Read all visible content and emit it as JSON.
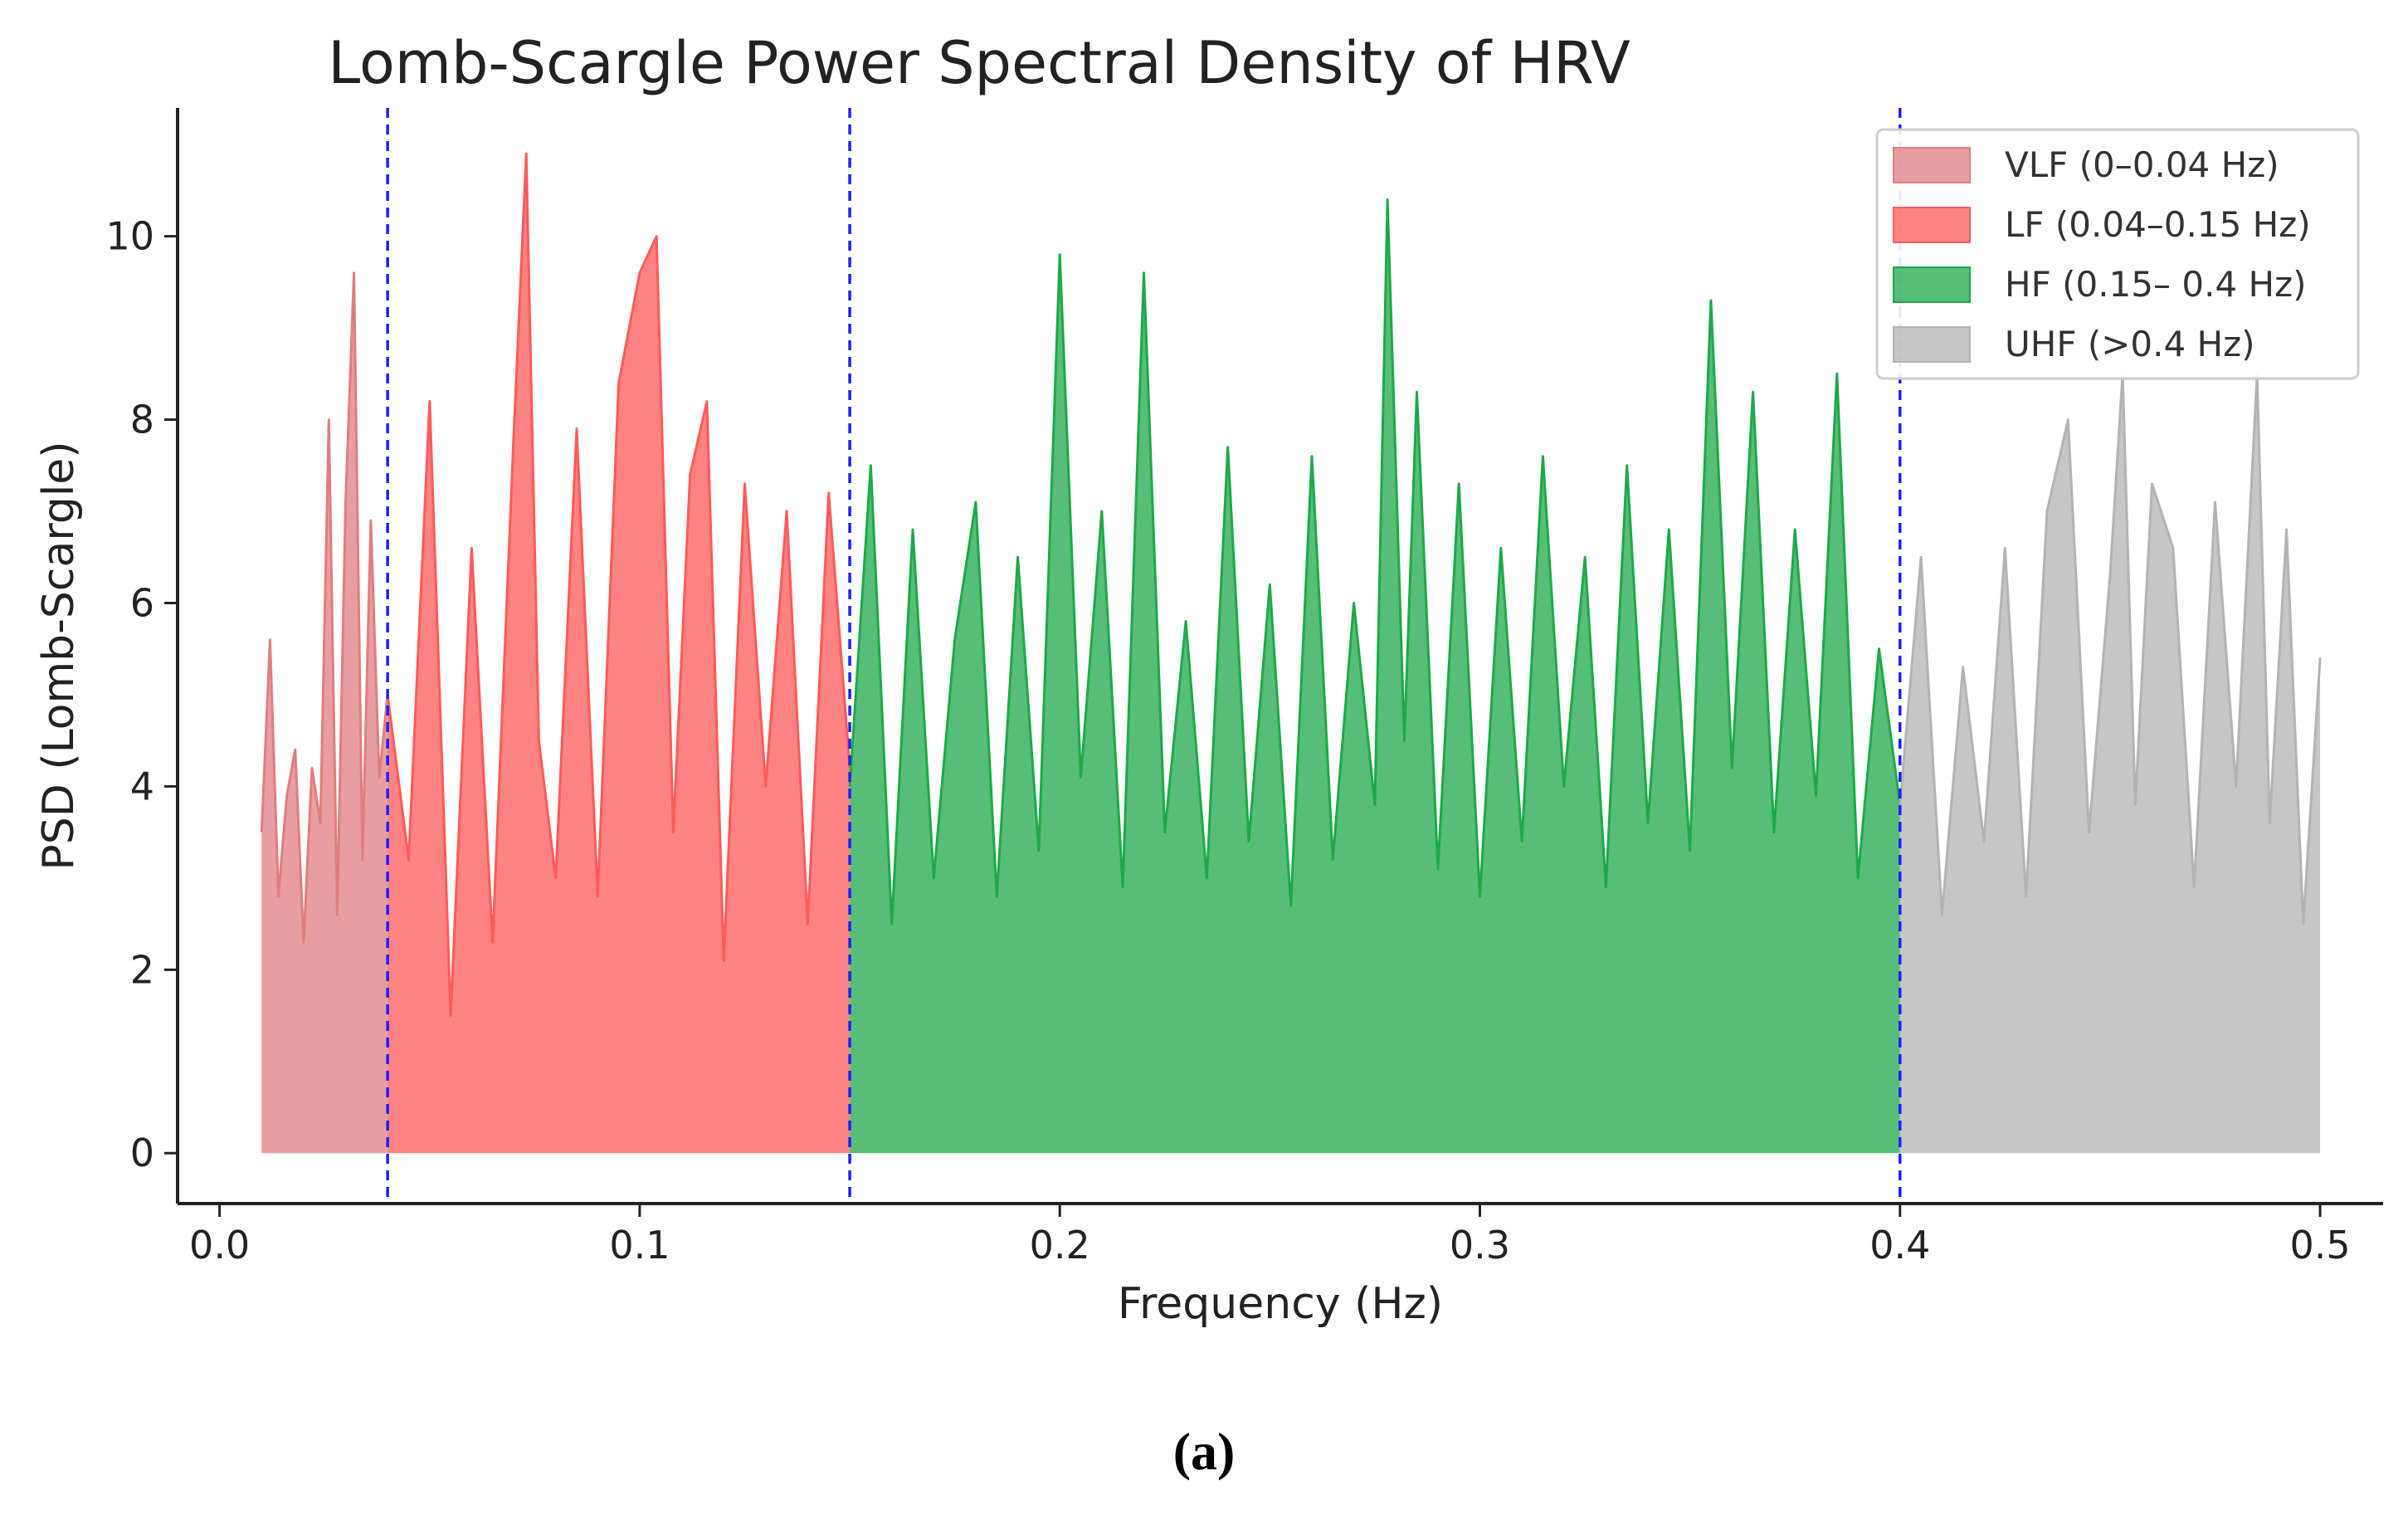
{
  "chart_data": {
    "type": "area",
    "title": "Lomb-Scargle Power Spectral Density of HRV",
    "xlabel": "Frequency (Hz)",
    "ylabel": "PSD (Lomb-Scargle)",
    "xlim": [
      -0.01,
      0.515
    ],
    "ylim": [
      -0.55,
      11.4
    ],
    "xticks": [
      0.0,
      0.1,
      0.2,
      0.3,
      0.4,
      0.5
    ],
    "xtick_labels": [
      "0.0",
      "0.1",
      "0.2",
      "0.3",
      "0.4",
      "0.5"
    ],
    "yticks": [
      0,
      2,
      4,
      6,
      8,
      10
    ],
    "ytick_labels": [
      "0",
      "2",
      "4",
      "6",
      "8",
      "10"
    ],
    "band_boundaries": [
      0.04,
      0.15,
      0.4
    ],
    "boundary_color": "#1f1fff",
    "legend_position": "top-right",
    "series": [
      {
        "name": "VLF (0–0.04 Hz)",
        "range": [
          0.01,
          0.04
        ],
        "color": "#e07d80",
        "x": [
          0.01,
          0.012,
          0.014,
          0.016,
          0.018,
          0.02,
          0.022,
          0.024,
          0.026,
          0.028,
          0.03,
          0.032,
          0.034,
          0.036,
          0.038,
          0.04
        ],
        "values": [
          3.5,
          5.6,
          2.8,
          3.9,
          4.4,
          2.3,
          4.2,
          3.6,
          8.0,
          2.6,
          7.1,
          9.6,
          3.2,
          6.9,
          4.1,
          5.0
        ]
      },
      {
        "name": "LF (0.04–0.15 Hz)",
        "range": [
          0.04,
          0.15
        ],
        "color": "#ff5a5a",
        "x": [
          0.04,
          0.045,
          0.05,
          0.055,
          0.06,
          0.065,
          0.07,
          0.073,
          0.076,
          0.08,
          0.085,
          0.09,
          0.095,
          0.1,
          0.104,
          0.108,
          0.112,
          0.116,
          0.12,
          0.125,
          0.13,
          0.135,
          0.14,
          0.145,
          0.15
        ],
        "values": [
          5.0,
          3.2,
          8.2,
          1.5,
          6.6,
          2.3,
          7.8,
          10.9,
          4.5,
          3.0,
          7.9,
          2.8,
          8.4,
          9.6,
          10.0,
          3.5,
          7.4,
          8.2,
          2.1,
          7.3,
          4.0,
          7.0,
          2.5,
          7.2,
          4.2
        ]
      },
      {
        "name": "HF (0.15– 0.4 Hz)",
        "range": [
          0.15,
          0.4
        ],
        "color": "#1fa84a",
        "x": [
          0.15,
          0.155,
          0.16,
          0.165,
          0.17,
          0.175,
          0.18,
          0.185,
          0.19,
          0.195,
          0.2,
          0.205,
          0.21,
          0.215,
          0.22,
          0.225,
          0.23,
          0.235,
          0.24,
          0.245,
          0.25,
          0.255,
          0.26,
          0.265,
          0.27,
          0.275,
          0.278,
          0.282,
          0.285,
          0.29,
          0.295,
          0.3,
          0.305,
          0.31,
          0.315,
          0.32,
          0.325,
          0.33,
          0.335,
          0.34,
          0.345,
          0.35,
          0.355,
          0.36,
          0.365,
          0.37,
          0.375,
          0.38,
          0.385,
          0.39,
          0.395,
          0.4
        ],
        "values": [
          4.0,
          7.5,
          2.5,
          6.8,
          3.0,
          5.6,
          7.1,
          2.8,
          6.5,
          3.3,
          9.8,
          4.1,
          7.0,
          2.9,
          9.6,
          3.5,
          5.8,
          3.0,
          7.7,
          3.4,
          6.2,
          2.7,
          7.6,
          3.2,
          6.0,
          3.8,
          10.4,
          4.5,
          8.3,
          3.1,
          7.3,
          2.8,
          6.6,
          3.4,
          7.6,
          4.0,
          6.5,
          2.9,
          7.5,
          3.6,
          6.8,
          3.3,
          9.3,
          4.2,
          8.3,
          3.5,
          6.8,
          3.9,
          8.5,
          3.0,
          5.5,
          3.8
        ]
      },
      {
        "name": "UHF (>0.4 Hz)",
        "range": [
          0.4,
          0.5
        ],
        "color": "#b3b3b3",
        "x": [
          0.4,
          0.405,
          0.41,
          0.415,
          0.42,
          0.425,
          0.43,
          0.435,
          0.44,
          0.445,
          0.45,
          0.453,
          0.456,
          0.46,
          0.465,
          0.47,
          0.475,
          0.48,
          0.485,
          0.488,
          0.492,
          0.496,
          0.5
        ],
        "values": [
          3.8,
          6.5,
          2.6,
          5.3,
          3.4,
          6.6,
          2.8,
          7.0,
          8.0,
          3.5,
          6.3,
          8.5,
          3.8,
          7.3,
          6.6,
          2.9,
          7.1,
          4.0,
          8.5,
          3.6,
          6.8,
          2.5,
          5.4
        ]
      }
    ]
  },
  "caption": "(a)"
}
